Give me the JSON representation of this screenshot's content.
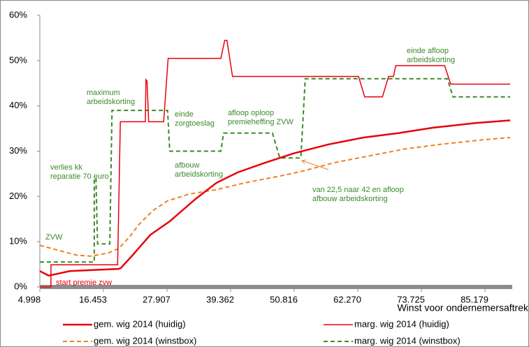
{
  "chart_data": {
    "type": "line",
    "x_label": "Winst voor ondernemersaftrek",
    "xlim": [
      4998,
      89700
    ],
    "xticks": [
      {
        "value": 4998,
        "label": "4.998"
      },
      {
        "value": 16453,
        "label": "16.453"
      },
      {
        "value": 27907,
        "label": "27.907"
      },
      {
        "value": 39362,
        "label": "39.362"
      },
      {
        "value": 50816,
        "label": "50.816"
      },
      {
        "value": 62270,
        "label": "62.270"
      },
      {
        "value": 73725,
        "label": "73.725"
      },
      {
        "value": 85179,
        "label": "85.179"
      }
    ],
    "ylim": [
      0,
      60
    ],
    "yticks": [
      {
        "value": 0,
        "label": "0%"
      },
      {
        "value": 10,
        "label": "10%"
      },
      {
        "value": 20,
        "label": "20%"
      },
      {
        "value": 30,
        "label": "30%"
      },
      {
        "value": 40,
        "label": "40%"
      },
      {
        "value": 50,
        "label": "50%"
      },
      {
        "value": 60,
        "label": "60%"
      }
    ],
    "grid": false,
    "series": [
      {
        "name": "gem. wig 2014 (huidig)",
        "color": "#e8000b",
        "style": "solid",
        "width": 2.5,
        "x": [
          4998,
          6600,
          10400,
          19200,
          19600,
          21700,
          24900,
          28400,
          33100,
          36800,
          40600,
          45700,
          50700,
          57000,
          63300,
          69600,
          75900,
          83400,
          89700
        ],
        "values": [
          3.5,
          2.5,
          3.5,
          4.0,
          4.2,
          7.0,
          11.5,
          14.5,
          19.5,
          23.0,
          25.3,
          27.5,
          29.5,
          31.5,
          33.0,
          34.0,
          35.2,
          36.2,
          36.8
        ]
      },
      {
        "name": "marg. wig 2014 (huidig)",
        "color": "#e8000b",
        "style": "solid",
        "width": 1.5,
        "x": [
          4998,
          7000,
          7000,
          19000,
          19500,
          24000,
          24100,
          24300,
          24600,
          27300,
          28100,
          37600,
          38300,
          38700,
          39700,
          62400,
          63500,
          66700,
          67800,
          68700,
          69100,
          77900,
          79000,
          89700
        ],
        "values": [
          0,
          0,
          4.9,
          4.9,
          36.5,
          36.5,
          45.8,
          45.5,
          36.5,
          36.5,
          50.5,
          50.5,
          54.5,
          54.5,
          46.5,
          46.5,
          42,
          42,
          46.5,
          46.5,
          48.9,
          48.9,
          44.8,
          44.8
        ]
      },
      {
        "name": "gem. wig 2014 (winstbox)",
        "color": "#f08020",
        "style": "dashed",
        "width": 2,
        "x": [
          4998,
          11700,
          14200,
          17300,
          19200,
          21100,
          23000,
          25500,
          28000,
          31800,
          36800,
          41900,
          48200,
          52000,
          58200,
          64500,
          70800,
          77100,
          84700,
          89700
        ],
        "values": [
          9.2,
          7.0,
          6.8,
          7.5,
          8.5,
          11.0,
          14.0,
          17.0,
          19.0,
          20.5,
          21.5,
          23.0,
          24.5,
          25.5,
          27.5,
          29.0,
          30.5,
          31.5,
          32.5,
          33.0
        ]
      },
      {
        "name": "marg. wig 2014 (winstbox)",
        "color": "#3a8a2a",
        "style": "dashed",
        "width": 2,
        "x": [
          4998,
          14800,
          14800,
          15100,
          15400,
          15400,
          17600,
          18000,
          28000,
          28400,
          37600,
          38100,
          46900,
          48200,
          52000,
          52800,
          78400,
          79400,
          89700
        ],
        "values": [
          5.5,
          5.5,
          24,
          24,
          9.5,
          9.5,
          9.5,
          39,
          39,
          30,
          30,
          34,
          34,
          28.5,
          28.5,
          46,
          46,
          42,
          42
        ]
      }
    ],
    "annotations": [
      {
        "lines": [
          "ZVW"
        ],
        "color": "#3a8a2a"
      },
      {
        "lines": [
          "verlies kk",
          "reparatie 70 euro"
        ],
        "color": "#3a8a2a"
      },
      {
        "lines": [
          "maximum",
          "arbeidskorting"
        ],
        "color": "#3a8a2a"
      },
      {
        "lines": [
          "einde",
          "zorgtoeslag"
        ],
        "color": "#3a8a2a"
      },
      {
        "lines": [
          "afbouw",
          "arbeidskorting"
        ],
        "color": "#3a8a2a"
      },
      {
        "lines": [
          "afloop oploop",
          "premieheffing ZVW"
        ],
        "color": "#3a8a2a"
      },
      {
        "lines": [
          "einde afloop",
          "arbeidskorting"
        ],
        "color": "#3a8a2a"
      },
      {
        "lines": [
          "start premie zvw"
        ],
        "color": "#e8000b"
      },
      {
        "lines": [
          "van 22,5 naar 42 en afloop",
          "afbouw arbeidskorting"
        ],
        "color": "#3a8a2a"
      }
    ]
  }
}
